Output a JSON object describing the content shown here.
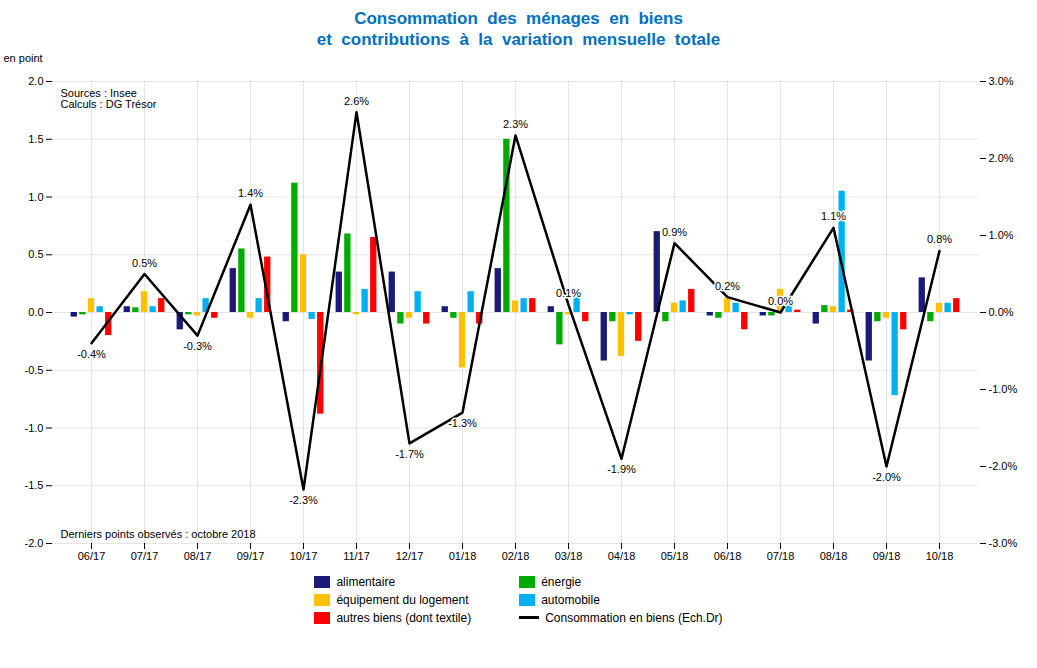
{
  "chart_data": {
    "type": "bar",
    "title": "Consommation  des  ménages  en  biens\net  contributions  à  la  variation  mensuelle  totale",
    "ylabel": "en point",
    "annotations": [
      "Sources : Insee\nCalculs : DG Trésor",
      "Derniers points observés : octobre 2018"
    ],
    "categories": [
      "06/17",
      "07/17",
      "08/17",
      "09/17",
      "10/17",
      "11/17",
      "12/17",
      "01/18",
      "02/18",
      "03/18",
      "04/18",
      "05/18",
      "06/18",
      "07/18",
      "08/18",
      "09/18",
      "10/18"
    ],
    "series": [
      {
        "name": "alimentaire",
        "type": "bar",
        "color": "#1a1a7a",
        "values": [
          -0.04,
          0.05,
          -0.15,
          0.38,
          -0.08,
          0.35,
          0.35,
          0.05,
          0.38,
          0.05,
          -0.42,
          0.7,
          -0.03,
          -0.03,
          -0.1,
          -0.42,
          0.3
        ]
      },
      {
        "name": "énergie",
        "type": "bar",
        "color": "#00aa00",
        "values": [
          -0.02,
          0.04,
          -0.02,
          0.55,
          1.12,
          0.68,
          -0.1,
          -0.05,
          1.5,
          -0.28,
          -0.08,
          -0.08,
          -0.05,
          -0.03,
          0.06,
          -0.08,
          -0.08
        ]
      },
      {
        "name": "équipement du logement",
        "type": "bar",
        "color": "#ffc000",
        "values": [
          0.12,
          0.18,
          -0.03,
          -0.05,
          0.5,
          -0.02,
          -0.05,
          -0.48,
          0.1,
          -0.02,
          -0.38,
          0.08,
          0.12,
          0.2,
          0.05,
          -0.05,
          0.08
        ]
      },
      {
        "name": "automobile",
        "type": "bar",
        "color": "#00b0f0",
        "values": [
          0.05,
          0.05,
          0.12,
          0.12,
          -0.06,
          0.2,
          0.18,
          0.18,
          0.12,
          0.2,
          -0.02,
          0.1,
          0.08,
          0.08,
          1.05,
          -0.72,
          0.08
        ]
      },
      {
        "name": "autres biens (dont textile)",
        "type": "bar",
        "color": "#ff0000",
        "values": [
          -0.2,
          0.12,
          -0.05,
          0.48,
          -0.88,
          0.65,
          -0.1,
          -0.1,
          0.12,
          -0.08,
          -0.25,
          0.2,
          -0.15,
          0.02,
          0.02,
          -0.15,
          0.12
        ]
      },
      {
        "name": "Consommation en biens (Ech.Dr)",
        "type": "line",
        "axis": "y2",
        "color": "#000000",
        "data_labels": true,
        "values": [
          -0.4,
          0.5,
          -0.3,
          1.4,
          -2.3,
          2.6,
          -1.7,
          -1.3,
          2.3,
          0.1,
          -1.9,
          0.9,
          0.2,
          0.0,
          1.1,
          -2.0,
          0.8
        ],
        "value_labels": [
          "-0.4%",
          "0.5%",
          "-0.3%",
          "1.4%",
          "-2.3%",
          "2.6%",
          "-1.7%",
          "-1.3%",
          "2.3%",
          "0.1%",
          "-1.9%",
          "0.9%",
          "0.2%",
          "0.0%",
          "1.1%",
          "-2.0%",
          "0.8%"
        ]
      }
    ],
    "ylim": [
      -2.0,
      2.0
    ],
    "yticks": [
      {
        "value": -2.0,
        "label": "-2.0"
      },
      {
        "value": -1.5,
        "label": "-1.5"
      },
      {
        "value": -1.0,
        "label": "-1.0"
      },
      {
        "value": -0.5,
        "label": "-0.5"
      },
      {
        "value": 0.0,
        "label": "0.0"
      },
      {
        "value": 0.5,
        "label": "0.5"
      },
      {
        "value": 1.0,
        "label": "1.0"
      },
      {
        "value": 1.5,
        "label": "1.5"
      },
      {
        "value": 2.0,
        "label": "2.0"
      }
    ],
    "y2lim": [
      -3.0,
      3.0
    ],
    "y2ticks": [
      {
        "value": -3.0,
        "label": "-3.0%"
      },
      {
        "value": -2.0,
        "label": "-2.0%"
      },
      {
        "value": -1.0,
        "label": "-1.0%"
      },
      {
        "value": 0.0,
        "label": "0.0%"
      },
      {
        "value": 1.0,
        "label": "1.0%"
      },
      {
        "value": 2.0,
        "label": "2.0%"
      },
      {
        "value": 3.0,
        "label": "3.0%"
      }
    ],
    "grid": true,
    "legend": "bottom"
  }
}
